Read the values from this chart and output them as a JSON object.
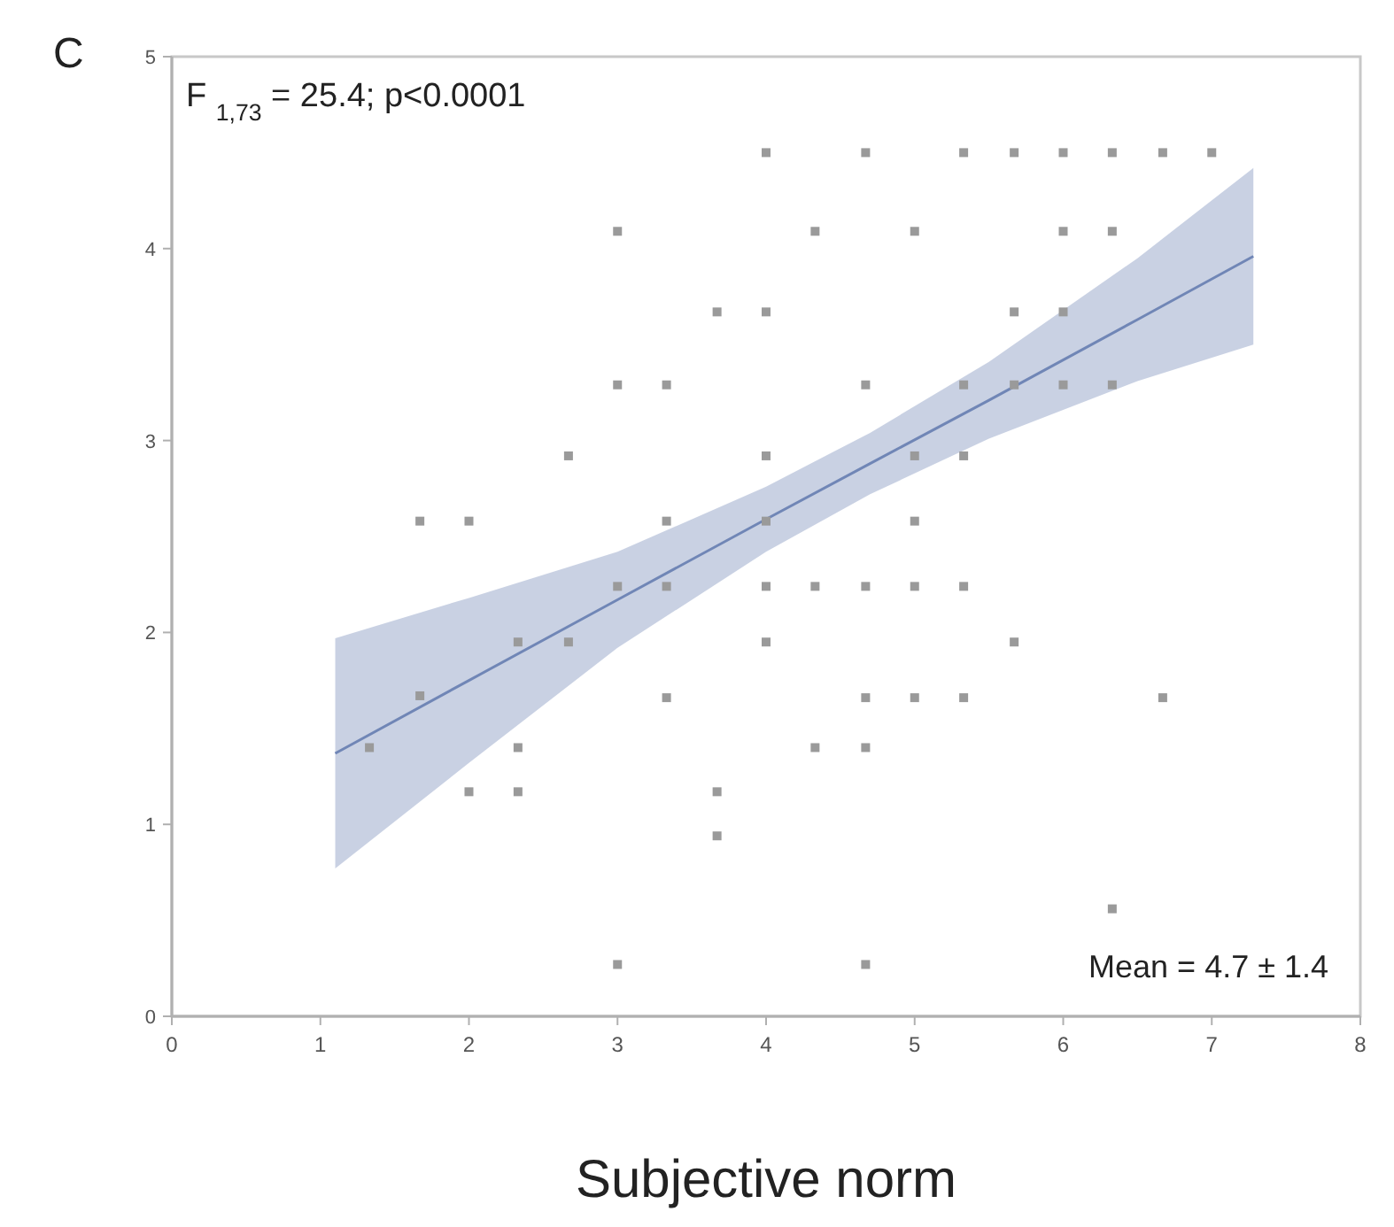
{
  "chart_data": {
    "type": "scatter",
    "xlabel": "Subjective norm",
    "xlim": [
      0,
      8
    ],
    "xticks": [
      0,
      1,
      2,
      3,
      4,
      5,
      6,
      7,
      8
    ],
    "ylim": [
      0,
      5
    ],
    "yticks": [
      0,
      1,
      2,
      3,
      4,
      5
    ],
    "grid": false,
    "marker": "square",
    "annotations": [
      "C",
      "F $_{1,73}$ = 25.4; p<0.0001",
      "Mean = 4.7 ± 1.4"
    ],
    "series": [
      {
        "color": "#9a9a9a",
        "x": [
          1.33,
          1.67,
          1.67,
          2,
          2,
          2.33,
          2.33,
          2.33,
          2.67,
          2.67,
          3,
          3,
          3,
          3,
          3.33,
          3.33,
          3.33,
          3.33,
          3.67,
          3.67,
          3.67,
          4,
          4,
          4,
          4,
          4,
          4,
          4.33,
          4.33,
          4.33,
          4.67,
          4.67,
          4.67,
          4.67,
          4.67,
          4.67,
          5,
          5,
          5,
          5,
          5,
          5.33,
          5.33,
          5.33,
          5.33,
          5.33,
          5.67,
          5.67,
          5.67,
          5.67,
          6,
          6,
          6,
          6,
          6.33,
          6.33,
          6.33,
          6.33,
          6.67,
          6.67,
          7
        ],
        "values": [
          1.4,
          1.67,
          2.58,
          2.58,
          1.17,
          1.95,
          1.4,
          1.17,
          2.92,
          1.95,
          4.09,
          3.29,
          2.24,
          0.27,
          3.29,
          2.58,
          2.24,
          1.66,
          3.67,
          1.17,
          0.94,
          4.5,
          3.67,
          2.92,
          2.58,
          2.24,
          1.95,
          4.09,
          2.24,
          1.4,
          4.5,
          3.29,
          2.24,
          1.66,
          1.4,
          0.27,
          4.09,
          2.92,
          2.58,
          2.24,
          1.66,
          4.5,
          3.29,
          2.92,
          2.24,
          1.66,
          4.5,
          3.67,
          3.29,
          1.95,
          4.5,
          4.09,
          3.67,
          3.29,
          4.5,
          4.09,
          3.29,
          0.56,
          4.5,
          1.66,
          4.5
        ]
      },
      {
        "type": "line",
        "color": "#7086b6",
        "marker": "none",
        "x": [
          1.1,
          2,
          3,
          4,
          4.7,
          5.5,
          6.5,
          7.28
        ],
        "values": [
          1.37,
          1.75,
          2.17,
          2.59,
          2.88,
          3.21,
          3.63,
          3.96
        ],
        "lower": [
          0.77,
          1.32,
          1.92,
          2.42,
          2.72,
          3.01,
          3.31,
          3.5
        ],
        "upper": [
          1.97,
          2.18,
          2.42,
          2.76,
          3.04,
          3.41,
          3.95,
          4.42
        ]
      }
    ]
  }
}
